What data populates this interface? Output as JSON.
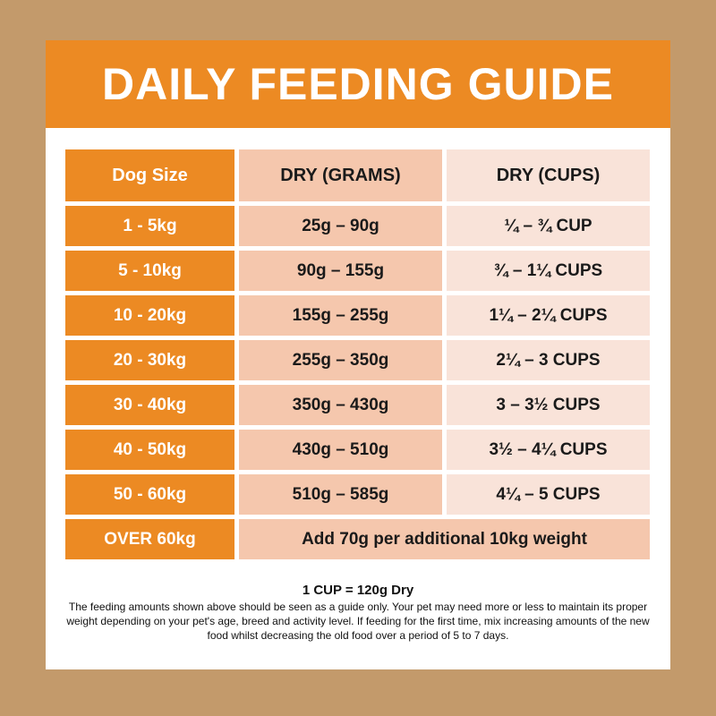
{
  "title": "DAILY FEEDING GUIDE",
  "headers": [
    "Dog Size",
    "DRY (GRAMS)",
    "DRY (CUPS)"
  ],
  "rows": [
    [
      "1 - 5kg",
      "25g – 90g",
      "¼ – ¾ CUP"
    ],
    [
      "5 - 10kg",
      "90g – 155g",
      "¾ – 1¼ CUPS"
    ],
    [
      "10 - 20kg",
      "155g – 255g",
      "1¼ – 2¼ CUPS"
    ],
    [
      "20 - 30kg",
      "255g – 350g",
      "2¼ – 3 CUPS"
    ],
    [
      "30 - 40kg",
      "350g – 430g",
      "3 – 3½ CUPS"
    ],
    [
      "40 - 50kg",
      "430g – 510g",
      "3½ – 4¼ CUPS"
    ],
    [
      "50 - 60kg",
      "510g – 585g",
      "4¼ – 5 CUPS"
    ]
  ],
  "last_row": {
    "size": "OVER 60kg",
    "note": "Add 70g per additional 10kg weight"
  },
  "cup_conversion": "1 CUP = 120g Dry",
  "disclaimer": "The feeding amounts shown above should be seen as a guide only. Your pet may need more or less to maintain its proper weight depending on your pet's age, breed and activity level. If feeding for the first time, mix increasing amounts of the new food whilst decreasing the old food over a period of 5 to 7 days.",
  "colors": {
    "orange": "#ec8a23",
    "grams": "#f5c7ad",
    "cups": "#f9e3d9",
    "background": "#c39a6b"
  }
}
